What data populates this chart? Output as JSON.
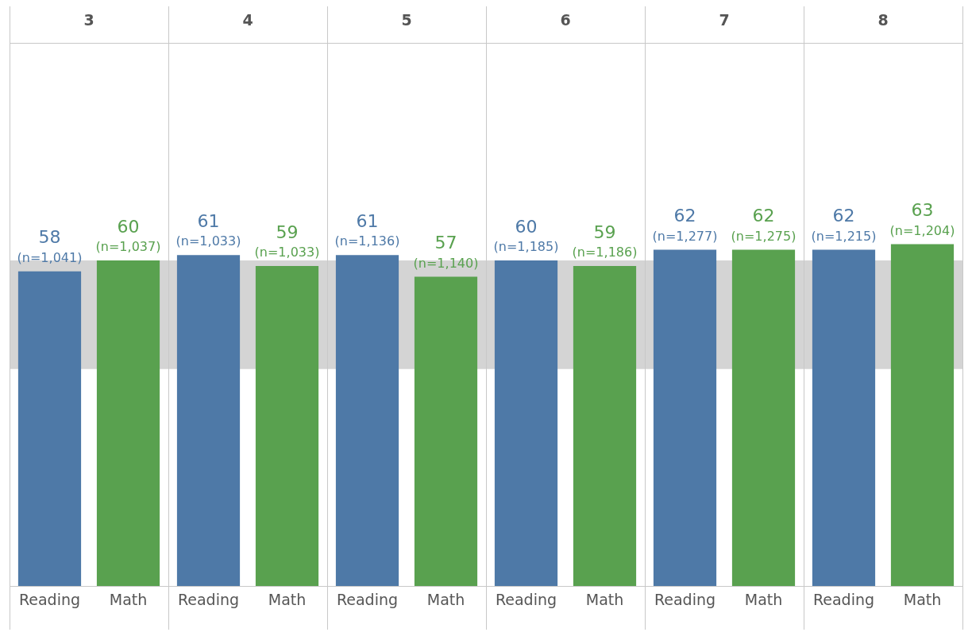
{
  "chart_data": {
    "type": "bar",
    "categories": [
      "3",
      "4",
      "5",
      "6",
      "7",
      "8"
    ],
    "series": [
      {
        "name": "Reading",
        "color": "#4e79a7",
        "values": [
          58,
          61,
          61,
          60,
          62,
          62
        ]
      },
      {
        "name": "Math",
        "color": "#59a14f",
        "values": [
          60,
          59,
          57,
          59,
          62,
          63
        ]
      }
    ],
    "data_labels": true,
    "annotations": [
      "(n=1,041)",
      "(n=1,037)",
      "(n=1,033)",
      "(n=1,033)",
      "(n=1,136)",
      "(n=1,140)",
      "(n=1,185)",
      "(n=1,186)",
      "(n=1,277)",
      "(n=1,275)",
      "(n=1,215)",
      "(n=1,204)"
    ],
    "ylim": [
      0,
      100
    ],
    "bands": [
      {
        "axis": "y",
        "from": 40,
        "to": 60,
        "color": "#d4d4d4"
      }
    ],
    "grid": "x",
    "legend": false,
    "tick_labels": "x"
  }
}
